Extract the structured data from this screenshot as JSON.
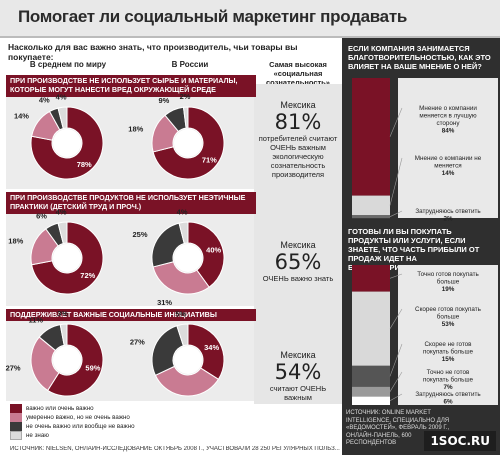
{
  "title": "Помогает ли социальный маркетинг продавать",
  "question": "Насколько для вас важно знать, что производитель, чьи товары вы покупаете:",
  "col_world": "В среднем по миру",
  "col_russia": "В России",
  "col_top": "Самая высокая «социальная сознательность»",
  "colors": {
    "dark_red": "#7a1226",
    "pink": "#c97b92",
    "dark_grey": "#3a3a3a",
    "light_grey": "#dcdcdc",
    "panel": "#2f2f2f"
  },
  "sections": [
    {
      "label": "ПРИ ПРОИЗВОДСТВЕ НЕ ИСПОЛЬЗУЕТ СЫРЬЕ И МАТЕРИАЛЫ, КОТОРЫЕ МОГУТ НАНЕСТИ ВРЕД ОКРУЖАЮЩЕЙ СРЕДЕ",
      "country": "Мексика",
      "big": "81%",
      "text": "потребителей считают ОЧЕНЬ важным экологическую сознательность производителя"
    },
    {
      "label": "ПРИ ПРОИЗВОДСТВЕ ПРОДУКТОВ НЕ ИСПОЛЬЗУЕТ НЕЭТИЧНЫЕ ПРАКТИКИ (ДЕТСКИЙ ТРУД И ПРОЧ.)",
      "country": "Мексика",
      "big": "65%",
      "text": "ОЧЕНЬ важно знать"
    },
    {
      "label": "ПОДДЕРЖИВАЕТ ВАЖНЫЕ СОЦИАЛЬНЫЕ ИНИЦИАТИВЫ",
      "country": "Мексика",
      "big": "54%",
      "text": "считают ОЧЕНЬ важным"
    }
  ],
  "chart_data": [
    {
      "type": "pie",
      "title": "В среднем по миру — сырье и материалы",
      "categories": [
        "важно или очень важно",
        "умеренно важно, но не очень важно",
        "не очень важно или вообще не важно",
        "не знаю"
      ],
      "values": [
        78,
        14,
        4,
        4
      ]
    },
    {
      "type": "pie",
      "title": "В России — сырье и материалы",
      "categories": [
        "важно или очень важно",
        "умеренно важно, но не очень важно",
        "не очень важно или вообще не важно",
        "не знаю"
      ],
      "values": [
        71,
        18,
        9,
        2
      ]
    },
    {
      "type": "pie",
      "title": "В среднем по миру — неэтичные практики",
      "categories": [
        "важно или очень важно",
        "умеренно важно, но не очень важно",
        "не очень важно или вообще не важно",
        "не знаю"
      ],
      "values": [
        72,
        18,
        6,
        4
      ]
    },
    {
      "type": "pie",
      "title": "В России — неэтичные практики",
      "categories": [
        "важно или очень важно",
        "умеренно важно, но не очень важно",
        "не очень важно или вообще не важно",
        "не знаю"
      ],
      "values": [
        40,
        31,
        25,
        4
      ]
    },
    {
      "type": "pie",
      "title": "В среднем по миру — социальные инициативы",
      "categories": [
        "важно или очень важно",
        "умеренно важно, но не очень важно",
        "не очень важно или вообще не важно",
        "не знаю"
      ],
      "values": [
        59,
        27,
        11,
        3
      ]
    },
    {
      "type": "pie",
      "title": "В России — социальные инициативы",
      "categories": [
        "важно или очень важно",
        "умеренно важно, но не очень важно",
        "не очень важно или вообще не важно",
        "не знаю"
      ],
      "values": [
        34,
        34,
        27,
        5
      ]
    },
    {
      "type": "bar",
      "title": "ЕСЛИ КОМПАНИЯ ЗАНИМАЕТСЯ БЛАГОТВОРИТЕЛЬНОСТЬЮ, КАК ЭТО ВЛИЯЕТ НА ВАШЕ МНЕНИЕ О НЕЙ?",
      "categories": [
        "Мнение о компании меняется в лучшую сторону",
        "Мнение о компании не меняется",
        "Затрудняюсь ответить"
      ],
      "values": [
        84,
        14,
        2
      ]
    },
    {
      "type": "bar",
      "title": "ГОТОВЫ ЛИ ВЫ ПОКУПАТЬ ПРОДУКТЫ ИЛИ УСЛУГИ, ЕСЛИ ЗНАЕТЕ, ЧТО ЧАСТЬ ПРИБЫЛИ ОТ ПРОДАЖ ИДЕТ НА БЛАГОТВОРИТЕЛЬНЫЕ ЦЕЛИ?",
      "categories": [
        "Точно готов покупать больше",
        "Скорее готов покупать больше",
        "Скорее не готов покупать больше",
        "Точно не готов покупать больше",
        "Затрудняюсь ответить"
      ],
      "values": [
        19,
        53,
        15,
        7,
        6
      ]
    }
  ],
  "legend": [
    "важно или очень важно",
    "умеренно важно, но не очень важно",
    "не очень важно или вообще не важно",
    "не знаю"
  ],
  "right_q1": "ЕСЛИ КОМПАНИЯ ЗАНИМАЕТСЯ БЛАГОТВОРИТЕЛЬНОСТЬЮ, КАК ЭТО ВЛИЯЕТ НА ВАШЕ МНЕНИЕ О НЕЙ?",
  "right_q2": "ГОТОВЫ ЛИ ВЫ ПОКУПАТЬ ПРОДУКТЫ ИЛИ УСЛУГИ, ЕСЛИ ЗНАЕТЕ, ЧТО ЧАСТЬ ПРИБЫЛИ ОТ ПРОДАЖ ИДЕТ НА БЛАГОТВОРИТЕЛЬНЫЕ ЦЕЛИ?",
  "source_left": "ИСТОЧНИК: NIELSEN, ОНЛАЙН-ИССЛЕДОВАНИЕ ОКТЯБРЬ 2008 Г., УЧАСТВОВАЛИ 28 250 РЕГУЛЯРНЫХ ПОЛЬЗ...",
  "source_right": "ИСТОЧНИК: ONLINE MARKET INTELLIGENCE, СПЕЦИАЛЬНО ДЛЯ «ВЕДОМОСТЕЙ», ФЕВРАЛЬ 2009 Г., ОНЛАЙН-ПАНЕЛЬ, 600 РЕСПОНДЕНТОВ",
  "brand": "1SOC.RU"
}
